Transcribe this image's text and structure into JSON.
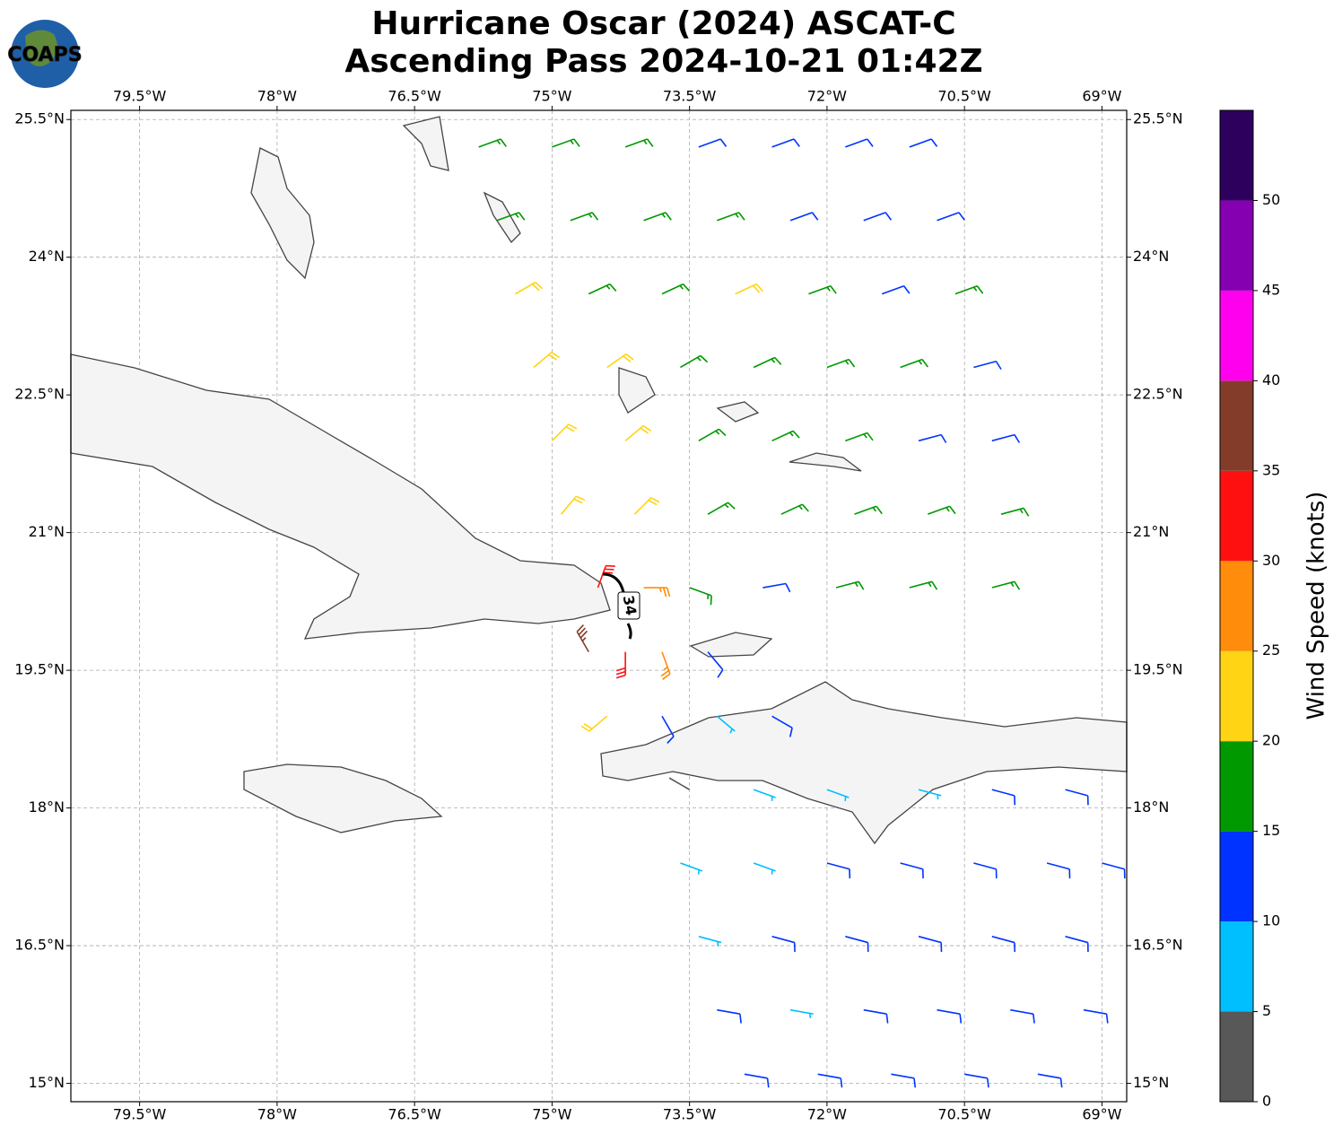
{
  "chart_data": {
    "type": "barbs",
    "title": "Hurricane Oscar (2024) ASCAT-C",
    "subtitle": "Ascending Pass 2024-10-21 01:42Z",
    "logo_text": "COAPS",
    "colorbar_label": "Wind Speed (knots)",
    "contour_label": "34",
    "xlim": [
      -80.25,
      -68.73
    ],
    "ylim": [
      14.8,
      25.6
    ],
    "xticks": [
      {
        "value": -79.5,
        "label": "79.5°W"
      },
      {
        "value": -78,
        "label": "78°W"
      },
      {
        "value": -76.5,
        "label": "76.5°W"
      },
      {
        "value": -75,
        "label": "75°W"
      },
      {
        "value": -73.5,
        "label": "73.5°W"
      },
      {
        "value": -72,
        "label": "72°W"
      },
      {
        "value": -70.5,
        "label": "70.5°W"
      },
      {
        "value": -69,
        "label": "69°W"
      }
    ],
    "yticks": [
      {
        "value": 15,
        "label": "15°N"
      },
      {
        "value": 16.5,
        "label": "16.5°N"
      },
      {
        "value": 18,
        "label": "18°N"
      },
      {
        "value": 19.5,
        "label": "19.5°N"
      },
      {
        "value": 21,
        "label": "21°N"
      },
      {
        "value": 22.5,
        "label": "22.5°N"
      },
      {
        "value": 24,
        "label": "24°N"
      },
      {
        "value": 25.5,
        "label": "25.5°N"
      }
    ],
    "grid": true,
    "colorbar_lim": [
      0,
      55
    ],
    "colorbar_bounds": [
      0,
      5,
      10,
      15,
      20,
      25,
      30,
      35,
      40,
      45,
      50,
      55
    ],
    "colorbar_colors": [
      "#585858",
      "#00bfff",
      "#0033ff",
      "#009900",
      "#ffd414",
      "#ff8c0a",
      "#ff1010",
      "#843c2a",
      "#ff00ee",
      "#8400b0",
      "#2e005e"
    ],
    "colorbar_ticks": [
      0,
      5,
      10,
      15,
      20,
      25,
      30,
      35,
      40,
      45,
      50
    ],
    "barbs": [
      [
        -75.8,
        25.2,
        17,
        70
      ],
      [
        -75.0,
        25.2,
        17,
        70
      ],
      [
        -74.2,
        25.2,
        17,
        70
      ],
      [
        -73.4,
        25.2,
        12,
        70
      ],
      [
        -72.6,
        25.2,
        12,
        70
      ],
      [
        -71.8,
        25.2,
        12,
        70
      ],
      [
        -71.1,
        25.2,
        12,
        70
      ],
      [
        -75.6,
        24.4,
        17,
        70
      ],
      [
        -74.8,
        24.4,
        17,
        70
      ],
      [
        -74.0,
        24.4,
        17,
        70
      ],
      [
        -73.2,
        24.4,
        17,
        70
      ],
      [
        -72.4,
        24.4,
        12,
        70
      ],
      [
        -71.6,
        24.4,
        12,
        70
      ],
      [
        -70.8,
        24.4,
        12,
        70
      ],
      [
        -75.4,
        23.6,
        22,
        60
      ],
      [
        -74.6,
        23.6,
        17,
        65
      ],
      [
        -73.8,
        23.6,
        17,
        65
      ],
      [
        -73.0,
        23.6,
        22,
        65
      ],
      [
        -72.2,
        23.6,
        17,
        70
      ],
      [
        -71.4,
        23.6,
        12,
        70
      ],
      [
        -70.6,
        23.6,
        17,
        70
      ],
      [
        -75.2,
        22.8,
        22,
        50
      ],
      [
        -74.4,
        22.8,
        22,
        55
      ],
      [
        -73.6,
        22.8,
        17,
        60
      ],
      [
        -72.8,
        22.8,
        17,
        65
      ],
      [
        -72.0,
        22.8,
        17,
        70
      ],
      [
        -71.2,
        22.8,
        17,
        70
      ],
      [
        -70.4,
        22.8,
        12,
        75
      ],
      [
        -75.0,
        22.0,
        22,
        45
      ],
      [
        -74.2,
        22.0,
        22,
        50
      ],
      [
        -73.4,
        22.0,
        17,
        60
      ],
      [
        -72.6,
        22.0,
        17,
        65
      ],
      [
        -71.8,
        22.0,
        17,
        70
      ],
      [
        -71.0,
        22.0,
        12,
        75
      ],
      [
        -70.2,
        22.0,
        12,
        75
      ],
      [
        -74.9,
        21.2,
        22,
        40
      ],
      [
        -74.1,
        21.2,
        22,
        45
      ],
      [
        -73.3,
        21.2,
        17,
        60
      ],
      [
        -72.5,
        21.2,
        17,
        65
      ],
      [
        -71.7,
        21.2,
        17,
        70
      ],
      [
        -70.9,
        21.2,
        17,
        70
      ],
      [
        -70.1,
        21.2,
        17,
        75
      ],
      [
        -74.5,
        20.4,
        33,
        20
      ],
      [
        -74.0,
        20.4,
        27,
        90
      ],
      [
        -73.5,
        20.4,
        17,
        110
      ],
      [
        -72.7,
        20.4,
        12,
        80
      ],
      [
        -71.9,
        20.4,
        17,
        75
      ],
      [
        -71.1,
        20.4,
        17,
        75
      ],
      [
        -70.2,
        20.4,
        17,
        75
      ],
      [
        -74.6,
        19.7,
        38,
        330
      ],
      [
        -74.2,
        19.7,
        33,
        180
      ],
      [
        -73.8,
        19.7,
        27,
        160
      ],
      [
        -73.3,
        19.7,
        12,
        140
      ],
      [
        -74.4,
        19.0,
        22,
        230
      ],
      [
        -73.8,
        19.0,
        12,
        150
      ],
      [
        -73.2,
        19.0,
        8,
        130
      ],
      [
        -72.6,
        19.0,
        12,
        120
      ],
      [
        -73.5,
        18.2,
        3,
        300
      ],
      [
        -72.8,
        18.2,
        8,
        110
      ],
      [
        -72.0,
        18.2,
        8,
        110
      ],
      [
        -71.0,
        18.2,
        8,
        105
      ],
      [
        -70.2,
        18.2,
        12,
        105
      ],
      [
        -69.4,
        18.2,
        12,
        105
      ],
      [
        -73.6,
        17.4,
        8,
        110
      ],
      [
        -72.8,
        17.4,
        8,
        110
      ],
      [
        -72.0,
        17.4,
        12,
        105
      ],
      [
        -71.2,
        17.4,
        12,
        105
      ],
      [
        -70.4,
        17.4,
        12,
        105
      ],
      [
        -69.6,
        17.4,
        12,
        105
      ],
      [
        -69.0,
        17.4,
        12,
        105
      ],
      [
        -73.4,
        16.6,
        8,
        105
      ],
      [
        -72.6,
        16.6,
        12,
        105
      ],
      [
        -71.8,
        16.6,
        12,
        105
      ],
      [
        -71.0,
        16.6,
        12,
        105
      ],
      [
        -70.2,
        16.6,
        12,
        105
      ],
      [
        -69.4,
        16.6,
        12,
        105
      ],
      [
        -73.2,
        15.8,
        12,
        100
      ],
      [
        -72.4,
        15.8,
        8,
        100
      ],
      [
        -71.6,
        15.8,
        12,
        100
      ],
      [
        -70.8,
        15.8,
        12,
        100
      ],
      [
        -70.0,
        15.8,
        12,
        100
      ],
      [
        -69.2,
        15.8,
        12,
        100
      ],
      [
        -72.9,
        15.1,
        12,
        100
      ],
      [
        -72.1,
        15.1,
        12,
        100
      ],
      [
        -71.3,
        15.1,
        12,
        100
      ],
      [
        -70.5,
        15.1,
        12,
        100
      ],
      [
        -69.7,
        15.1,
        12,
        100
      ]
    ]
  }
}
